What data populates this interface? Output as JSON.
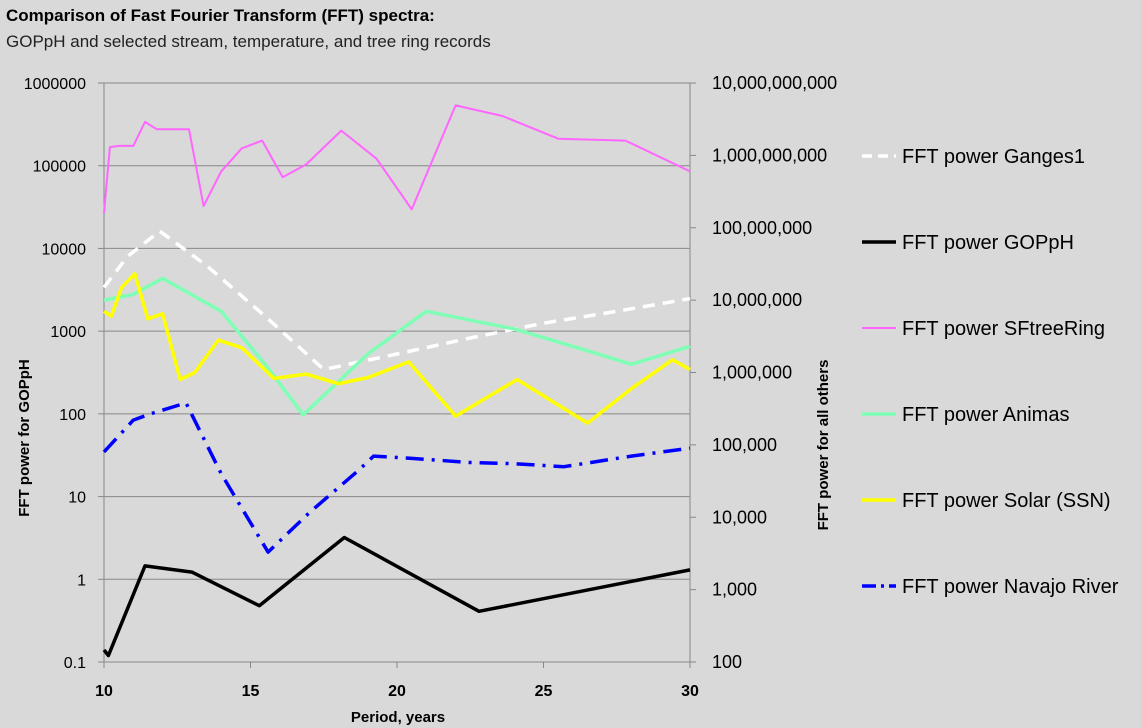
{
  "chart_data": {
    "type": "line",
    "title": "Comparison of Fast Fourier Transform (FFT) spectra:",
    "subtitle": "GOPpH and selected stream, temperature, and tree ring records",
    "xlabel": "Period, years",
    "ylabel_left": "FFT power for GOPpH",
    "ylabel_right": "FFT power for all others",
    "xlim": [
      10,
      30
    ],
    "ylim_left": [
      0.1,
      1000000
    ],
    "ylim_right": [
      100,
      10000000000
    ],
    "scale": "log",
    "grid": true,
    "legend_position": "right",
    "x_ticks": [
      "10",
      "15",
      "20",
      "25",
      "30"
    ],
    "y_left_ticks": [
      "0.1",
      "1",
      "10",
      "100",
      "1000",
      "10000",
      "100000",
      "1000000"
    ],
    "y_right_ticks": [
      "100",
      "1,000",
      "10,000",
      "100,000",
      "1,000,000",
      "10,000,000",
      "100,000,000",
      "1,000,000,000",
      "10,000,000,000"
    ],
    "series": [
      {
        "name": "FFT power Ganges1",
        "axis": "right",
        "color": "#ffffff",
        "style": "dashed",
        "x": [
          10,
          10.8,
          11.9,
          13.5,
          15.5,
          17.5,
          20,
          22.5,
          25,
          27.5,
          30
        ],
        "y": [
          15000000,
          40000000,
          90000000,
          30000000,
          6000000,
          1100000,
          1800000,
          3000000,
          4800000,
          7000000,
          10500000
        ]
      },
      {
        "name": "FFT power GOPpH",
        "axis": "left",
        "color": "#000000",
        "style": "solid",
        "x": [
          10,
          10.15,
          11.4,
          13,
          15.3,
          18.2,
          22.8,
          30
        ],
        "y": [
          0.14,
          0.12,
          1.45,
          1.22,
          0.48,
          3.2,
          0.41,
          1.3
        ]
      },
      {
        "name": "FFT power SFtreeRing",
        "axis": "right",
        "color": "#ff66ff",
        "style": "solid",
        "x": [
          10,
          10.2,
          10.5,
          11,
          11.4,
          11.8,
          12.3,
          12.9,
          13.4,
          14,
          14.7,
          15.4,
          16.1,
          16.9,
          18.1,
          19.3,
          20.5,
          22,
          23.6,
          25.5,
          27.8,
          30
        ],
        "y": [
          160000000,
          1300000000,
          1350000000,
          1350000000,
          2900000000,
          2300000000,
          2300000000,
          2300000000,
          200000000,
          600000000,
          1250000000,
          1600000000,
          500000000,
          750000000,
          2200000000,
          900000000,
          180000000,
          4900000000,
          3500000000,
          1700000000,
          1600000000,
          600000000
        ]
      },
      {
        "name": "FFT power Animas",
        "axis": "right",
        "color": "#7fffb5",
        "style": "solid",
        "x": [
          10,
          11,
          12,
          14,
          15.5,
          16.8,
          19,
          21,
          24,
          26.5,
          28,
          30
        ],
        "y": [
          10000000,
          12000000,
          20000000,
          7000000,
          1300000,
          260000,
          1800000,
          7000000,
          4000000,
          2000000,
          1300000,
          2300000
        ]
      },
      {
        "name": "FFT power Solar (SSN)",
        "axis": "right",
        "color": "#ffff00",
        "style": "solid",
        "x": [
          10,
          10.25,
          10.6,
          11.05,
          11.5,
          12,
          12.6,
          13.1,
          13.9,
          14.7,
          15.8,
          16.9,
          18,
          19,
          20.4,
          22,
          24.1,
          26.5,
          28,
          29.4,
          30
        ],
        "y": [
          7000000,
          6000000,
          15000000,
          23000000,
          5500000,
          6500000,
          800000,
          1000000,
          2800000,
          2200000,
          830000,
          950000,
          700000,
          850000,
          1400000,
          250000,
          800000,
          200000,
          600000,
          1500000,
          1100000
        ]
      },
      {
        "name": "FFT power Navajo River",
        "axis": "right",
        "color": "#0000ff",
        "style": "dashdot",
        "x": [
          10,
          11,
          11.6,
          12.8,
          14,
          15.6,
          17,
          18.7,
          19.2,
          20.5,
          22.5,
          24,
          25.7,
          28,
          30
        ],
        "y": [
          80000,
          220000,
          270000,
          380000,
          40000,
          3300,
          11500,
          45000,
          70000,
          65000,
          57000,
          55000,
          50000,
          70000,
          90000
        ]
      }
    ]
  }
}
